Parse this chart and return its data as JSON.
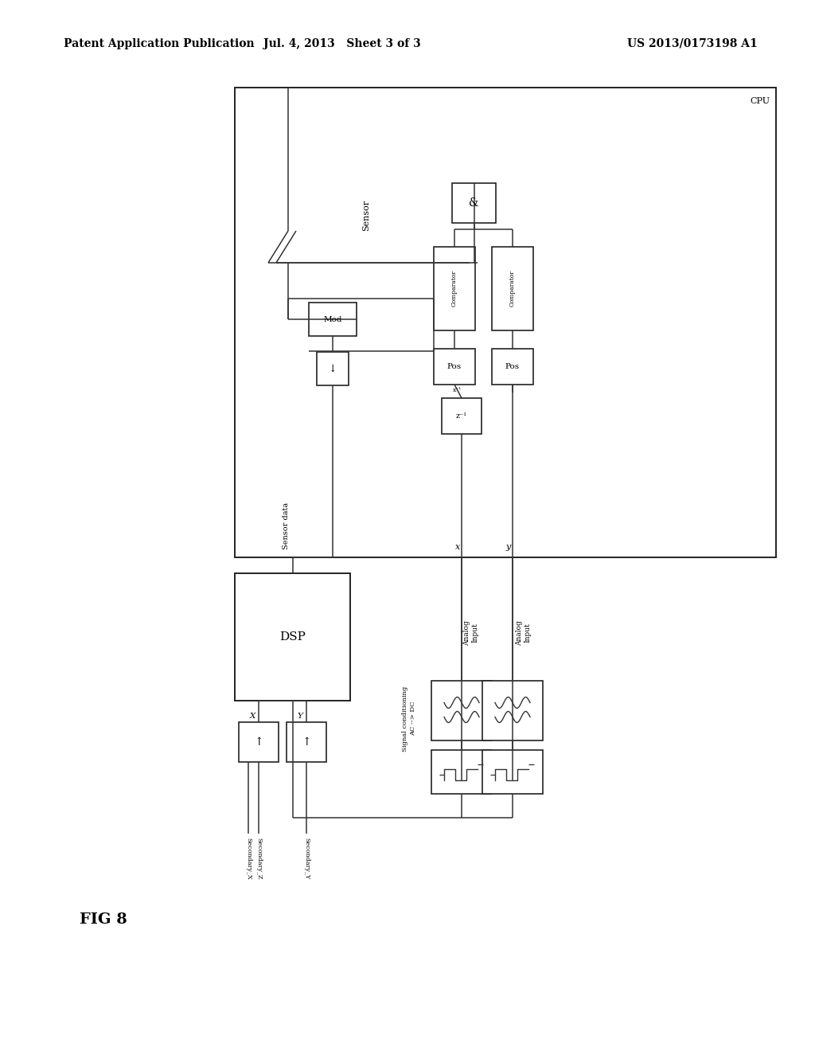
{
  "bg_color": "#ffffff",
  "header_left": "Patent Application Publication",
  "header_mid": "Jul. 4, 2013   Sheet 3 of 3",
  "header_right": "US 2013/0173198 A1",
  "fig_label": "FIG 8"
}
